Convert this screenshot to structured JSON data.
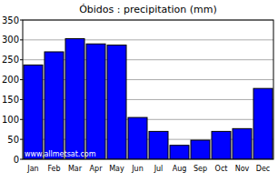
{
  "chart_data": {
    "type": "bar",
    "title": "Óbidos : precipitation (mm)",
    "categories": [
      "Jan",
      "Feb",
      "Mar",
      "Apr",
      "May",
      "Jun",
      "Jul",
      "Aug",
      "Sep",
      "Oct",
      "Nov",
      "Dec"
    ],
    "values": [
      237,
      270,
      303,
      290,
      287,
      105,
      70,
      35,
      48,
      70,
      77,
      178
    ],
    "color": "#0000ff",
    "ylim": [
      0,
      350
    ],
    "yticks": [
      0,
      50,
      100,
      150,
      200,
      250,
      300,
      350
    ],
    "grid": true,
    "annotation": "www.allmetsat.com"
  }
}
